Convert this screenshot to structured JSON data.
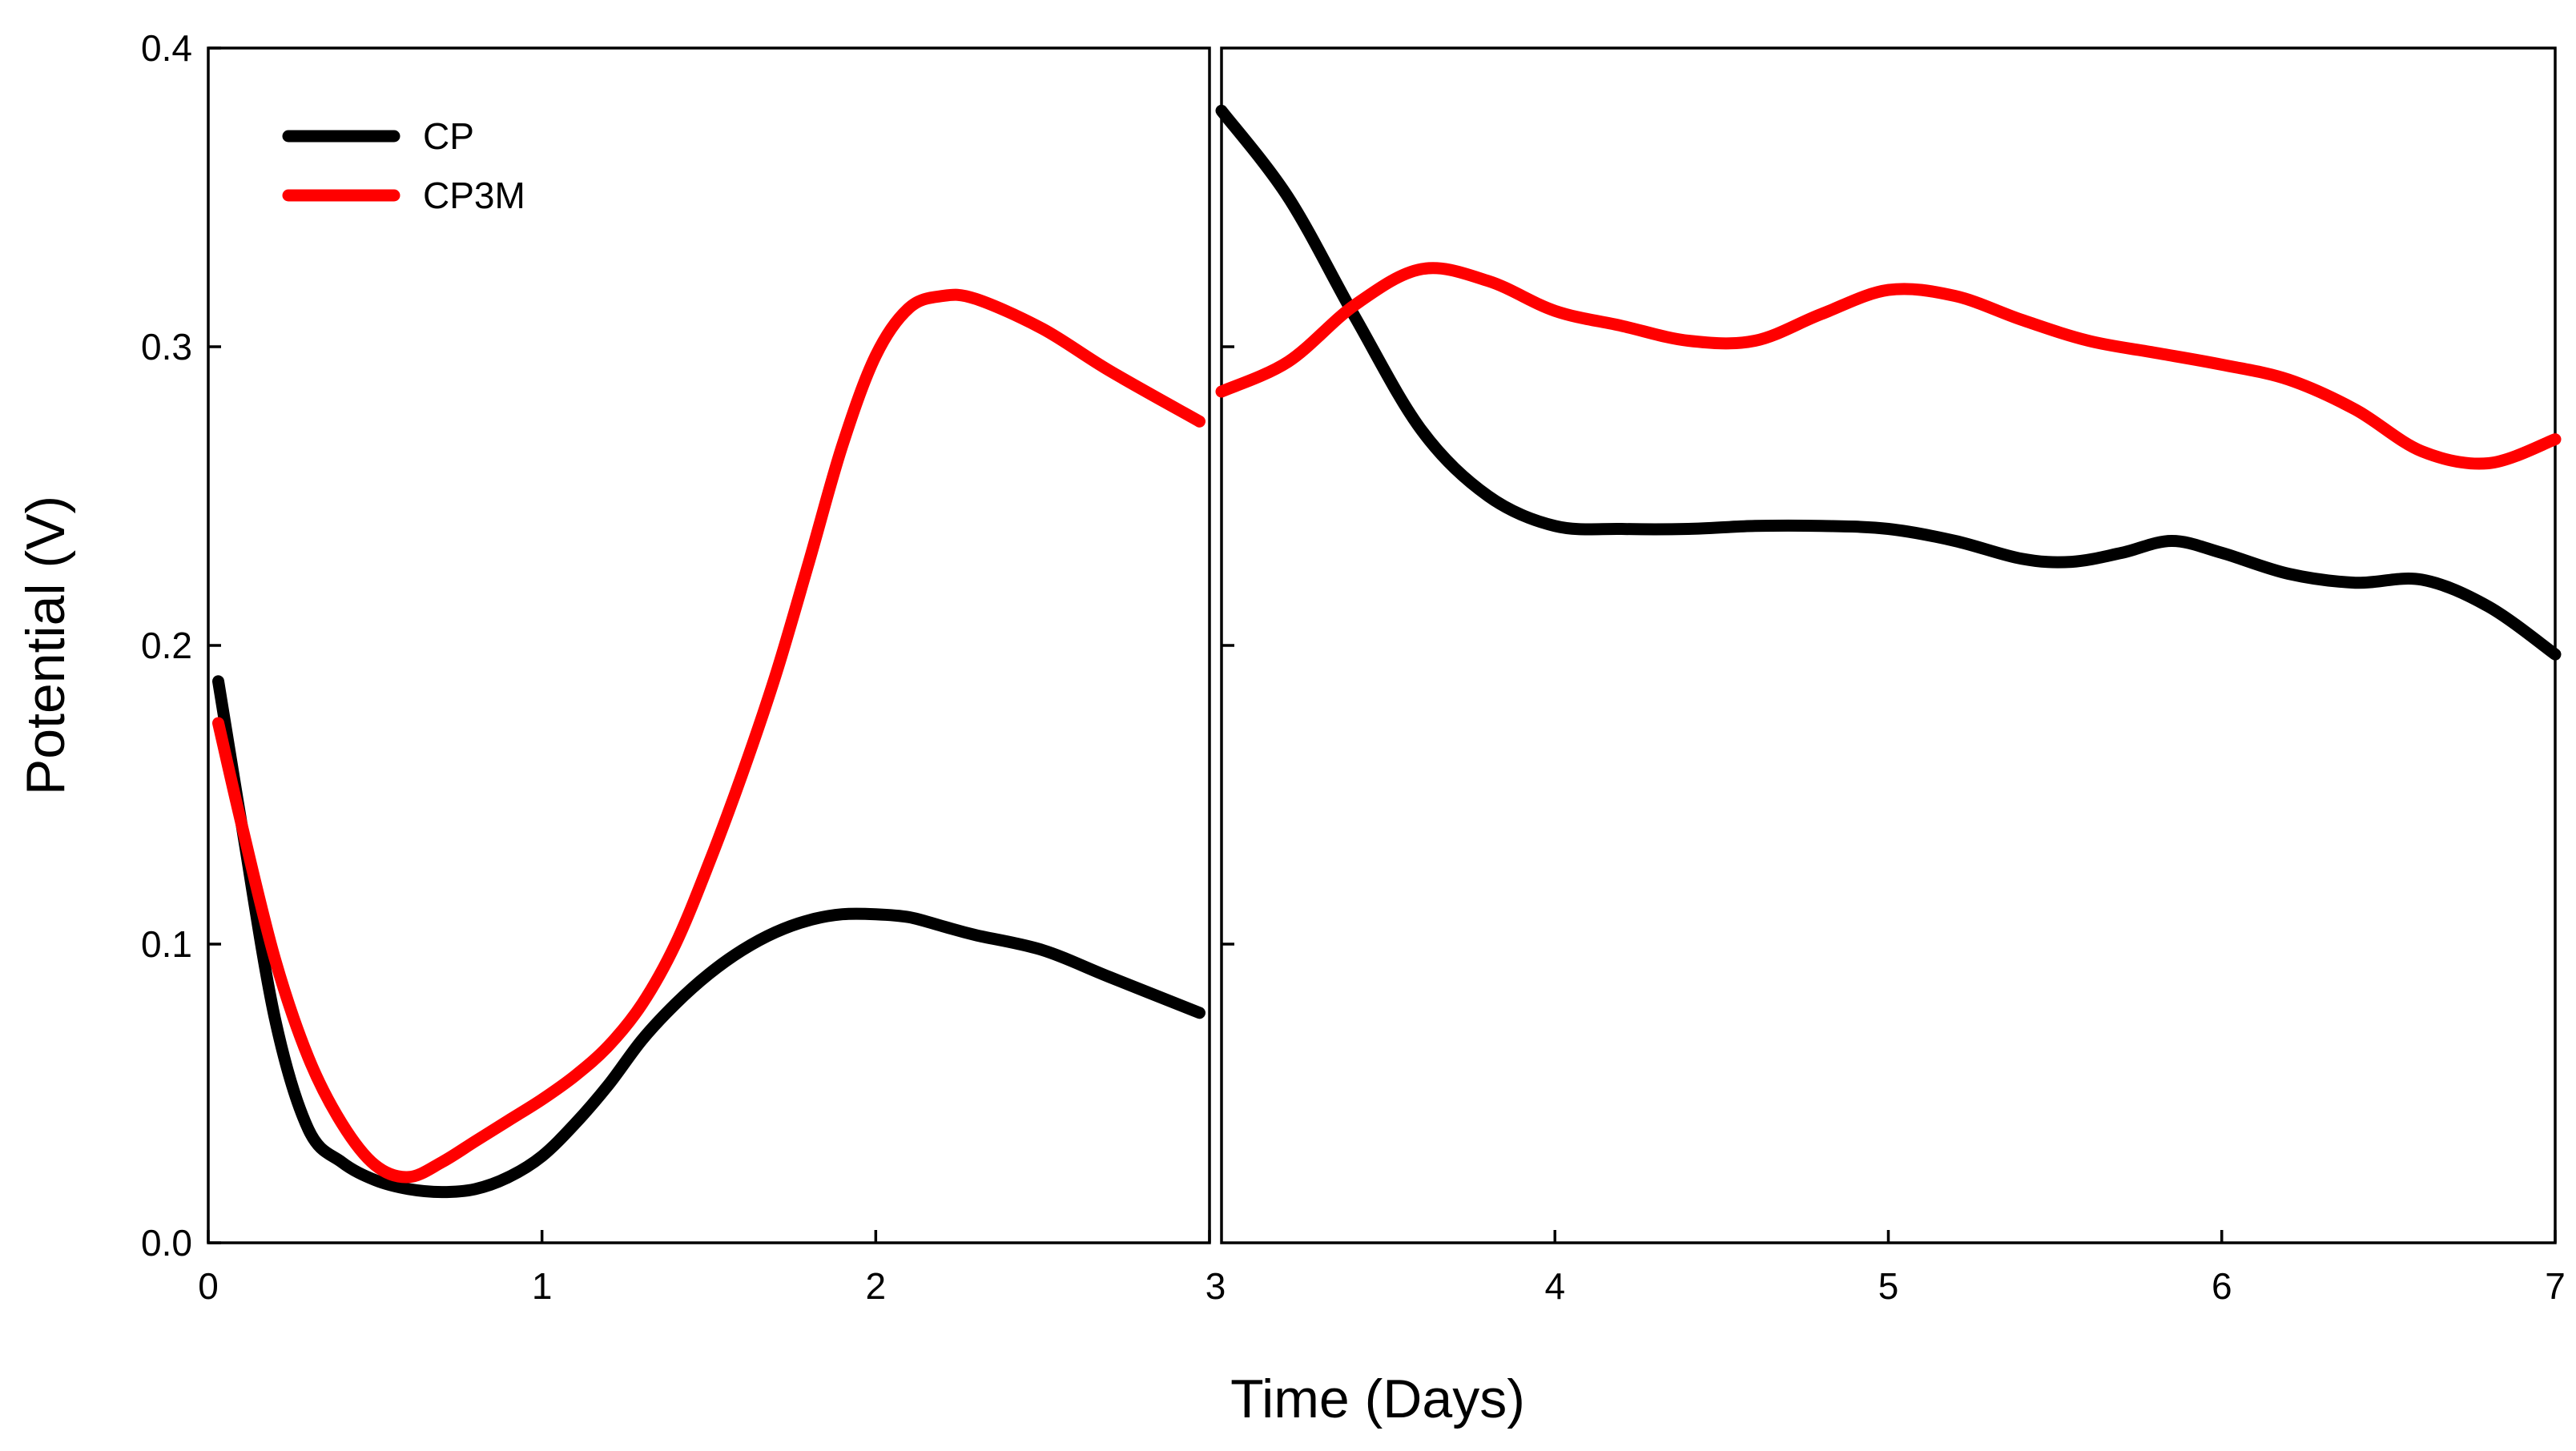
{
  "chart_data": {
    "type": "line",
    "title": "",
    "xlabel": "Time (Days)",
    "ylabel": "Potential (V)",
    "xlim": [
      0,
      7
    ],
    "ylim": [
      0.0,
      0.4
    ],
    "grid": false,
    "legend_position": "top-left",
    "x_tick_labels": [
      "0",
      "1",
      "2",
      "3",
      "4",
      "5",
      "6",
      "7"
    ],
    "y_tick_labels": [
      "0.0",
      "0.1",
      "0.2",
      "0.3",
      "0.4"
    ],
    "panels": [
      {
        "name": "left",
        "xlim": [
          0,
          3
        ],
        "x_ticks": [
          0,
          1,
          2,
          3
        ],
        "y_ticks": [
          0.0,
          0.1,
          0.2,
          0.3,
          0.4
        ],
        "y_tick_labels_shown": true
      },
      {
        "name": "right",
        "xlim": [
          3,
          7
        ],
        "x_ticks": [
          4,
          5,
          6,
          7
        ],
        "y_ticks": [
          0.1,
          0.2,
          0.3
        ],
        "y_tick_labels_shown": false
      }
    ],
    "series": [
      {
        "name": "CP",
        "color": "#000000",
        "x": [
          0.03,
          0.1,
          0.2,
          0.3,
          0.4,
          0.5,
          0.6,
          0.7,
          0.8,
          0.9,
          1.0,
          1.1,
          1.2,
          1.3,
          1.4,
          1.5,
          1.6,
          1.7,
          1.8,
          1.9,
          2.0,
          2.1,
          2.2,
          2.3,
          2.5,
          2.7,
          2.97,
          3.0,
          3.2,
          3.4,
          3.6,
          3.8,
          4.0,
          4.2,
          4.4,
          4.6,
          4.8,
          5.0,
          5.2,
          5.4,
          5.55,
          5.7,
          5.85,
          6.0,
          6.2,
          6.4,
          6.6,
          6.8,
          7.0
        ],
        "y": [
          0.188,
          0.14,
          0.075,
          0.038,
          0.027,
          0.021,
          0.018,
          0.017,
          0.018,
          0.022,
          0.029,
          0.04,
          0.053,
          0.068,
          0.08,
          0.09,
          0.098,
          0.104,
          0.108,
          0.11,
          0.11,
          0.109,
          0.106,
          0.103,
          0.098,
          0.089,
          0.077,
          0.379,
          0.35,
          0.31,
          0.272,
          0.25,
          0.24,
          0.239,
          0.239,
          0.24,
          0.24,
          0.239,
          0.235,
          0.229,
          0.228,
          0.231,
          0.235,
          0.231,
          0.224,
          0.221,
          0.222,
          0.213,
          0.197
        ]
      },
      {
        "name": "CP3M",
        "color": "#ff0000",
        "x": [
          0.03,
          0.1,
          0.2,
          0.3,
          0.4,
          0.5,
          0.6,
          0.7,
          0.8,
          0.9,
          1.0,
          1.1,
          1.2,
          1.3,
          1.4,
          1.5,
          1.6,
          1.7,
          1.8,
          1.9,
          2.0,
          2.1,
          2.2,
          2.3,
          2.5,
          2.7,
          2.97,
          3.0,
          3.2,
          3.4,
          3.6,
          3.8,
          4.0,
          4.2,
          4.4,
          4.6,
          4.8,
          5.0,
          5.2,
          5.4,
          5.6,
          5.8,
          6.0,
          6.2,
          6.4,
          6.6,
          6.8,
          7.0
        ],
        "y": [
          0.174,
          0.14,
          0.095,
          0.062,
          0.04,
          0.026,
          0.022,
          0.027,
          0.034,
          0.041,
          0.048,
          0.056,
          0.066,
          0.08,
          0.1,
          0.127,
          0.157,
          0.19,
          0.228,
          0.267,
          0.297,
          0.313,
          0.317,
          0.316,
          0.306,
          0.292,
          0.275,
          0.285,
          0.295,
          0.314,
          0.326,
          0.322,
          0.312,
          0.307,
          0.302,
          0.302,
          0.311,
          0.319,
          0.317,
          0.309,
          0.302,
          0.298,
          0.294,
          0.289,
          0.279,
          0.265,
          0.261,
          0.269
        ]
      }
    ]
  }
}
